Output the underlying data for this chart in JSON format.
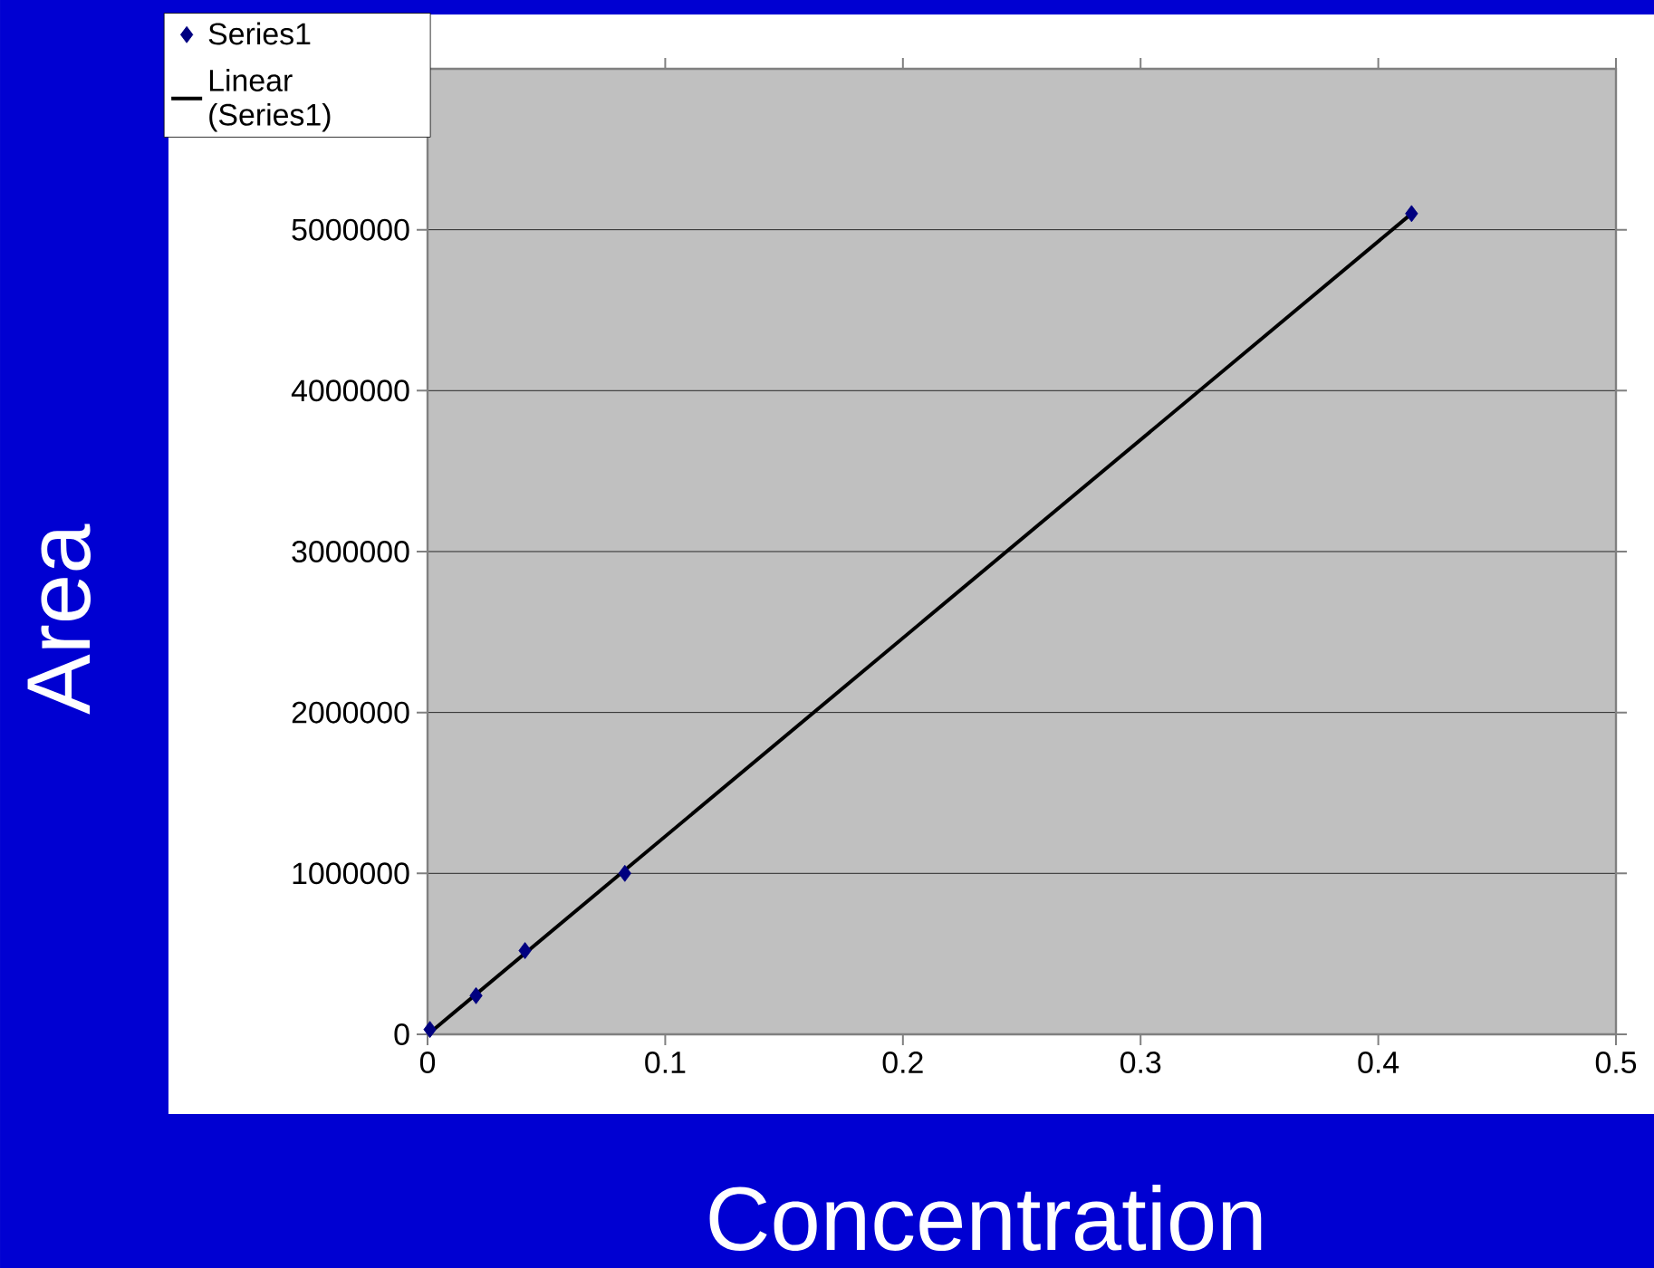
{
  "chart_data": {
    "type": "scatter",
    "xlabel": "Concentration",
    "ylabel": "Area",
    "series": [
      {
        "name": "Series1",
        "type": "scatter",
        "marker": "diamond",
        "color": "#000080",
        "x": [
          0.001,
          0.0204,
          0.041,
          0.083,
          0.414
        ],
        "values": [
          30000,
          240000,
          520000,
          1000000,
          5100000
        ]
      },
      {
        "name": "Linear (Series1)",
        "type": "line",
        "color": "#000000",
        "x": [
          0.001,
          0.414
        ],
        "values": [
          10000,
          5100000
        ]
      }
    ],
    "xlim": [
      0,
      0.5
    ],
    "xticks": [
      0,
      0.1,
      0.2,
      0.3,
      0.4,
      0.5
    ],
    "ylim": [
      0,
      6000000
    ],
    "yticks": [
      0,
      1000000,
      2000000,
      3000000,
      4000000,
      5000000
    ],
    "grid": "y",
    "legend": "top left"
  }
}
